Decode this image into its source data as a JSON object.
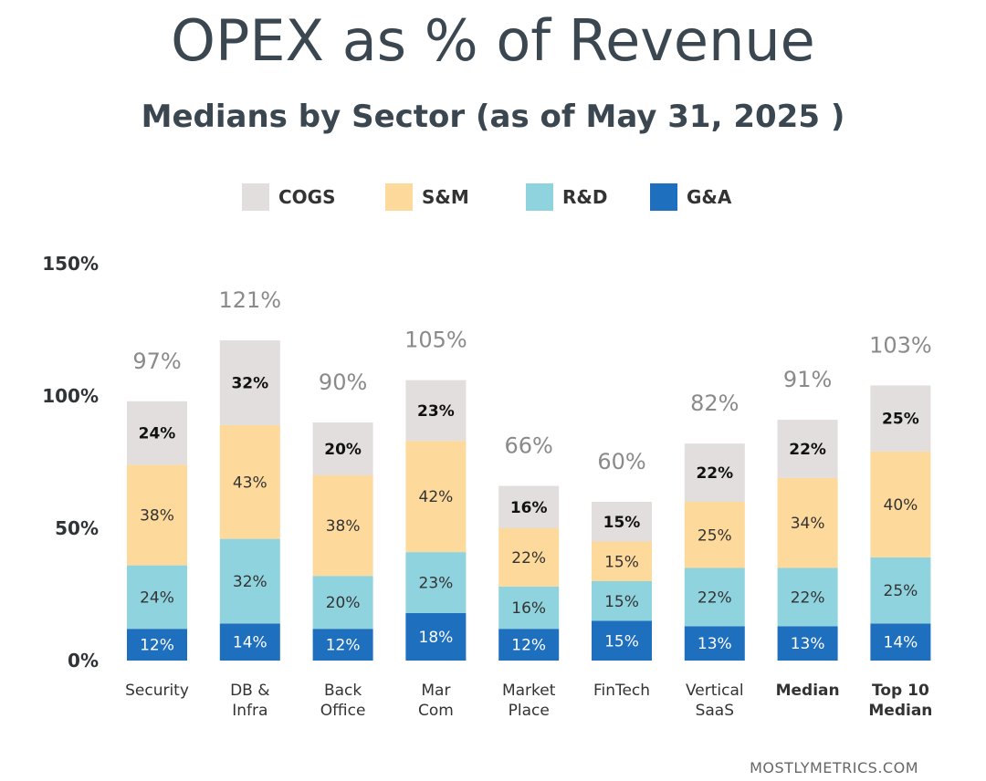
{
  "title": "OPEX as % of Revenue",
  "subtitle": "Medians by Sector (as of  May 31, 2025 )",
  "watermark": "MOSTLYMETRICS.COM",
  "chart_data": {
    "type": "bar",
    "stacked": true,
    "categories": [
      {
        "lines": [
          "Security"
        ],
        "bold": false
      },
      {
        "lines": [
          "DB &",
          "Infra"
        ],
        "bold": false
      },
      {
        "lines": [
          "Back",
          "Office"
        ],
        "bold": false
      },
      {
        "lines": [
          "Mar",
          "Com"
        ],
        "bold": false
      },
      {
        "lines": [
          "Market",
          "Place"
        ],
        "bold": false
      },
      {
        "lines": [
          "FinTech"
        ],
        "bold": false
      },
      {
        "lines": [
          "Vertical",
          "SaaS"
        ],
        "bold": false
      },
      {
        "lines": [
          "Median"
        ],
        "bold": true
      },
      {
        "lines": [
          "Top 10",
          "Median"
        ],
        "bold": true
      }
    ],
    "series": [
      {
        "name": "G&A",
        "color": "#1f6fbf",
        "label_color": "#ffffff",
        "label_bold": false,
        "values": [
          12,
          14,
          12,
          18,
          12,
          15,
          13,
          13,
          14
        ]
      },
      {
        "name": "R&D",
        "color": "#8fd3df",
        "label_color": "#333333",
        "label_bold": false,
        "values": [
          24,
          32,
          20,
          23,
          16,
          15,
          22,
          22,
          25
        ]
      },
      {
        "name": "S&M",
        "color": "#fdd99b",
        "label_color": "#333333",
        "label_bold": false,
        "values": [
          38,
          43,
          38,
          42,
          22,
          15,
          25,
          34,
          40
        ]
      },
      {
        "name": "COGS",
        "color": "#e2dedd",
        "label_color": "#111111",
        "label_bold": true,
        "values": [
          24,
          32,
          20,
          23,
          16,
          15,
          22,
          22,
          25
        ]
      }
    ],
    "legend_order": [
      "COGS",
      "S&M",
      "R&D",
      "G&A"
    ],
    "legend_position": "top",
    "totals": [
      "97%",
      "121%",
      "90%",
      "105%",
      "66%",
      "60%",
      "82%",
      "91%",
      "103%"
    ],
    "ylim": [
      0,
      150
    ],
    "yticks": [
      0,
      50,
      100,
      150
    ],
    "ytick_labels": [
      "0%",
      "50%",
      "100%",
      "150%"
    ],
    "grid": false
  }
}
